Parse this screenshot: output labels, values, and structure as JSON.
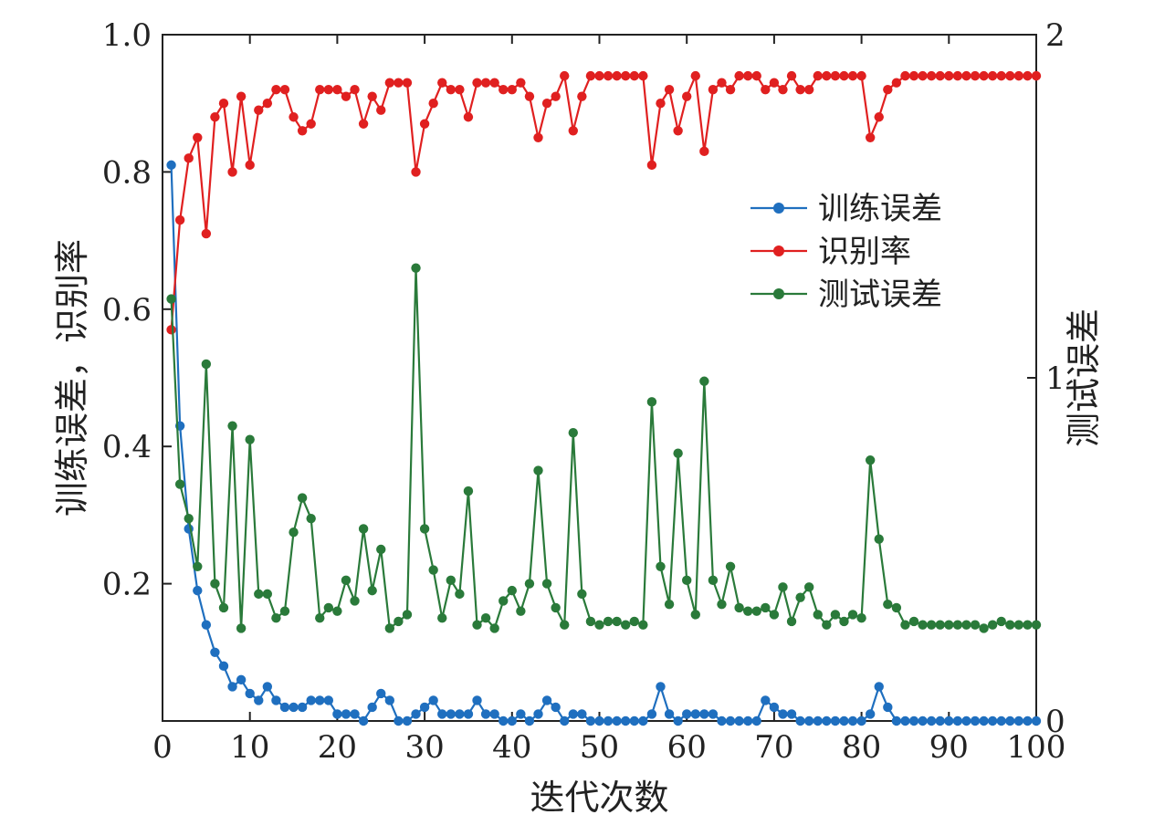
{
  "chart_data": {
    "type": "line",
    "xlabel": "迭代次数",
    "ylabel_left": "训练误差，识别率",
    "ylabel_right": "测试误差",
    "x_range": [
      0,
      100
    ],
    "y_left_range": [
      0,
      1.0
    ],
    "y_right_range": [
      0,
      2
    ],
    "x_ticks": [
      "0",
      "10",
      "20",
      "30",
      "40",
      "50",
      "60",
      "70",
      "80",
      "90",
      "100"
    ],
    "y_left_ticks": [
      "0.2",
      "0.4",
      "0.6",
      "0.8",
      "1.0"
    ],
    "y_right_ticks": [
      "0",
      "1",
      "2"
    ],
    "grid": false,
    "legend_placement": "center-right",
    "series": [
      {
        "name": "训练误差",
        "axis": "left",
        "color": "#1f6fbf",
        "x": [
          1,
          2,
          3,
          4,
          5,
          6,
          7,
          8,
          9,
          10,
          11,
          12,
          13,
          14,
          15,
          16,
          17,
          18,
          19,
          20,
          21,
          22,
          23,
          24,
          25,
          26,
          27,
          28,
          29,
          30,
          31,
          32,
          33,
          34,
          35,
          36,
          37,
          38,
          39,
          40,
          41,
          42,
          43,
          44,
          45,
          46,
          47,
          48,
          49,
          50,
          51,
          52,
          53,
          54,
          55,
          56,
          57,
          58,
          59,
          60,
          61,
          62,
          63,
          64,
          65,
          66,
          67,
          68,
          69,
          70,
          71,
          72,
          73,
          74,
          75,
          76,
          77,
          78,
          79,
          80,
          81,
          82,
          83,
          84,
          85,
          86,
          87,
          88,
          89,
          90,
          91,
          92,
          93,
          94,
          95,
          96,
          97,
          98,
          99,
          100
        ],
        "values": [
          0.81,
          0.43,
          0.28,
          0.19,
          0.14,
          0.1,
          0.08,
          0.05,
          0.06,
          0.04,
          0.03,
          0.05,
          0.03,
          0.02,
          0.02,
          0.02,
          0.03,
          0.03,
          0.03,
          0.01,
          0.01,
          0.01,
          0.0,
          0.02,
          0.04,
          0.03,
          0.0,
          0.0,
          0.01,
          0.02,
          0.03,
          0.01,
          0.01,
          0.01,
          0.01,
          0.03,
          0.01,
          0.01,
          0.0,
          0.0,
          0.01,
          0.0,
          0.01,
          0.03,
          0.02,
          0.0,
          0.01,
          0.01,
          0.0,
          0.0,
          0.0,
          0.0,
          0.0,
          0.0,
          0.0,
          0.01,
          0.05,
          0.01,
          0.0,
          0.01,
          0.01,
          0.01,
          0.01,
          0.0,
          0.0,
          0.0,
          0.0,
          0.0,
          0.03,
          0.02,
          0.01,
          0.01,
          0.0,
          0.0,
          0.0,
          0.0,
          0.0,
          0.0,
          0.0,
          0.0,
          0.01,
          0.05,
          0.02,
          0.0,
          0.0,
          0.0,
          0.0,
          0.0,
          0.0,
          0.0,
          0.0,
          0.0,
          0.0,
          0.0,
          0.0,
          0.0,
          0.0,
          0.0,
          0.0,
          0.0
        ]
      },
      {
        "name": "识别率",
        "axis": "left",
        "color": "#e02020",
        "x": [
          1,
          2,
          3,
          4,
          5,
          6,
          7,
          8,
          9,
          10,
          11,
          12,
          13,
          14,
          15,
          16,
          17,
          18,
          19,
          20,
          21,
          22,
          23,
          24,
          25,
          26,
          27,
          28,
          29,
          30,
          31,
          32,
          33,
          34,
          35,
          36,
          37,
          38,
          39,
          40,
          41,
          42,
          43,
          44,
          45,
          46,
          47,
          48,
          49,
          50,
          51,
          52,
          53,
          54,
          55,
          56,
          57,
          58,
          59,
          60,
          61,
          62,
          63,
          64,
          65,
          66,
          67,
          68,
          69,
          70,
          71,
          72,
          73,
          74,
          75,
          76,
          77,
          78,
          79,
          80,
          81,
          82,
          83,
          84,
          85,
          86,
          87,
          88,
          89,
          90,
          91,
          92,
          93,
          94,
          95,
          96,
          97,
          98,
          99,
          100
        ],
        "values": [
          0.57,
          0.73,
          0.82,
          0.85,
          0.71,
          0.88,
          0.9,
          0.8,
          0.91,
          0.81,
          0.89,
          0.9,
          0.92,
          0.92,
          0.88,
          0.86,
          0.87,
          0.92,
          0.92,
          0.92,
          0.91,
          0.92,
          0.87,
          0.91,
          0.89,
          0.93,
          0.93,
          0.93,
          0.8,
          0.87,
          0.9,
          0.93,
          0.92,
          0.92,
          0.88,
          0.93,
          0.93,
          0.93,
          0.92,
          0.92,
          0.93,
          0.91,
          0.85,
          0.9,
          0.91,
          0.94,
          0.86,
          0.91,
          0.94,
          0.94,
          0.94,
          0.94,
          0.94,
          0.94,
          0.94,
          0.81,
          0.9,
          0.92,
          0.86,
          0.91,
          0.94,
          0.83,
          0.92,
          0.93,
          0.92,
          0.94,
          0.94,
          0.94,
          0.92,
          0.93,
          0.92,
          0.94,
          0.92,
          0.92,
          0.94,
          0.94,
          0.94,
          0.94,
          0.94,
          0.94,
          0.85,
          0.88,
          0.92,
          0.93,
          0.94,
          0.94,
          0.94,
          0.94,
          0.94,
          0.94,
          0.94,
          0.94,
          0.94,
          0.94,
          0.94,
          0.94,
          0.94,
          0.94,
          0.94,
          0.94
        ]
      },
      {
        "name": "测试误差",
        "axis": "right",
        "color": "#2a7a3a",
        "x": [
          1,
          2,
          3,
          4,
          5,
          6,
          7,
          8,
          9,
          10,
          11,
          12,
          13,
          14,
          15,
          16,
          17,
          18,
          19,
          20,
          21,
          22,
          23,
          24,
          25,
          26,
          27,
          28,
          29,
          30,
          31,
          32,
          33,
          34,
          35,
          36,
          37,
          38,
          39,
          40,
          41,
          42,
          43,
          44,
          45,
          46,
          47,
          48,
          49,
          50,
          51,
          52,
          53,
          54,
          55,
          56,
          57,
          58,
          59,
          60,
          61,
          62,
          63,
          64,
          65,
          66,
          67,
          68,
          69,
          70,
          71,
          72,
          73,
          74,
          75,
          76,
          77,
          78,
          79,
          80,
          81,
          82,
          83,
          84,
          85,
          86,
          87,
          88,
          89,
          90,
          91,
          92,
          93,
          94,
          95,
          96,
          97,
          98,
          99,
          100
        ],
        "values": [
          1.23,
          0.69,
          0.59,
          0.45,
          1.04,
          0.4,
          0.33,
          0.86,
          0.27,
          0.82,
          0.37,
          0.37,
          0.3,
          0.32,
          0.55,
          0.65,
          0.59,
          0.3,
          0.33,
          0.32,
          0.41,
          0.35,
          0.56,
          0.38,
          0.5,
          0.27,
          0.29,
          0.31,
          1.32,
          0.56,
          0.44,
          0.3,
          0.41,
          0.37,
          0.67,
          0.28,
          0.3,
          0.27,
          0.35,
          0.38,
          0.32,
          0.4,
          0.73,
          0.4,
          0.33,
          0.28,
          0.84,
          0.37,
          0.29,
          0.28,
          0.29,
          0.29,
          0.28,
          0.29,
          0.28,
          0.93,
          0.45,
          0.34,
          0.78,
          0.41,
          0.31,
          0.99,
          0.41,
          0.34,
          0.45,
          0.33,
          0.32,
          0.32,
          0.33,
          0.31,
          0.39,
          0.29,
          0.36,
          0.39,
          0.31,
          0.28,
          0.31,
          0.29,
          0.31,
          0.3,
          0.76,
          0.53,
          0.34,
          0.33,
          0.28,
          0.29,
          0.28,
          0.28,
          0.28,
          0.28,
          0.28,
          0.28,
          0.28,
          0.27,
          0.28,
          0.29,
          0.28,
          0.28,
          0.28,
          0.28
        ]
      }
    ]
  }
}
